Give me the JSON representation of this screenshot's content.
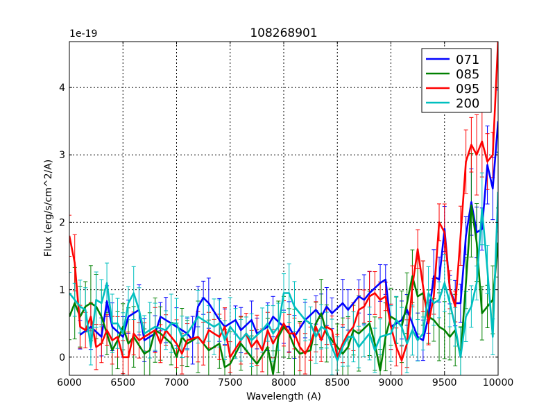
{
  "chart_data": {
    "type": "line",
    "title": "108268901",
    "xlabel": "Wavelength (A)",
    "ylabel": "Flux (erg/s/cm^2/A)",
    "y_offset_label": "1e-19",
    "xlim": [
      6000,
      10000
    ],
    "ylim": [
      -0.27,
      4.68
    ],
    "xticks": [
      6000,
      6500,
      7000,
      7500,
      8000,
      8500,
      9000,
      9500,
      10000
    ],
    "yticks": [
      0,
      1,
      2,
      3,
      4
    ],
    "grid": true,
    "legend_position": "top-right",
    "series": [
      {
        "name": "071",
        "color": "#0000ff",
        "yerr": 0.3,
        "x": [
          6100,
          6200,
          6300,
          6350,
          6400,
          6500,
          6550,
          6650,
          6700,
          6800,
          6850,
          6900,
          7000,
          7100,
          7150,
          7200,
          7250,
          7300,
          7400,
          7450,
          7550,
          7600,
          7700,
          7750,
          7850,
          7900,
          8000,
          8050,
          8100,
          8200,
          8300,
          8350,
          8400,
          8450,
          8550,
          8600,
          8700,
          8750,
          8800,
          8900,
          8950,
          9000,
          9100,
          9150,
          9250,
          9300,
          9350,
          9400,
          9450,
          9500,
          9550,
          9600,
          9650,
          9700,
          9750,
          9800,
          9850,
          9900,
          9950,
          10000
        ],
        "y": [
          0.33,
          0.45,
          0.3,
          0.83,
          0.45,
          0.3,
          0.6,
          0.7,
          0.25,
          0.35,
          0.6,
          0.55,
          0.45,
          0.35,
          0.25,
          0.75,
          0.88,
          0.8,
          0.55,
          0.45,
          0.55,
          0.4,
          0.55,
          0.35,
          0.45,
          0.6,
          0.45,
          0.45,
          0.3,
          0.55,
          0.7,
          0.6,
          0.75,
          0.65,
          0.8,
          0.7,
          0.9,
          0.85,
          0.95,
          1.1,
          1.15,
          0.45,
          0.55,
          0.7,
          0.3,
          0.25,
          0.6,
          1.2,
          1.15,
          1.9,
          1.0,
          0.8,
          0.8,
          1.8,
          2.3,
          1.85,
          1.9,
          2.85,
          2.5,
          3.5
        ]
      },
      {
        "name": "085",
        "color": "#008000",
        "yerr": 0.45,
        "x": [
          6000,
          6050,
          6100,
          6150,
          6200,
          6250,
          6300,
          6350,
          6400,
          6450,
          6500,
          6550,
          6600,
          6700,
          6750,
          6800,
          6850,
          6950,
          7000,
          7050,
          7100,
          7200,
          7300,
          7400,
          7450,
          7500,
          7600,
          7700,
          7750,
          7850,
          7900,
          7950,
          8000,
          8050,
          8100,
          8150,
          8250,
          8300,
          8350,
          8400,
          8500,
          8550,
          8600,
          8650,
          8700,
          8800,
          8850,
          8900,
          8950,
          9000,
          9050,
          9100,
          9150,
          9200,
          9250,
          9300,
          9350,
          9400,
          9450,
          9500,
          9550,
          9600,
          9650,
          9700,
          9750,
          9800,
          9850,
          9900,
          9950,
          10000
        ],
        "y": [
          0.6,
          0.8,
          0.6,
          0.75,
          0.8,
          0.75,
          0.6,
          0.35,
          0.1,
          0.25,
          0.45,
          0.2,
          0.3,
          0.05,
          0.1,
          0.4,
          0.35,
          0.2,
          0.0,
          0.3,
          0.2,
          0.3,
          0.1,
          0.2,
          -0.15,
          -0.1,
          0.2,
          0.0,
          -0.1,
          0.15,
          -0.25,
          0.3,
          0.45,
          0.35,
          0.15,
          0.05,
          0.1,
          0.5,
          0.65,
          0.35,
          0.15,
          0.05,
          0.15,
          0.4,
          0.35,
          0.5,
          0.2,
          -0.2,
          0.3,
          0.6,
          0.55,
          0.45,
          0.8,
          1.2,
          0.9,
          0.95,
          0.6,
          0.55,
          0.45,
          0.4,
          0.3,
          0.4,
          0.0,
          1.1,
          2.25,
          1.7,
          0.65,
          0.75,
          0.85,
          1.7
        ]
      },
      {
        "name": "095",
        "color": "#ff0000",
        "yerr": 0.3,
        "x": [
          6000,
          6050,
          6100,
          6150,
          6200,
          6250,
          6300,
          6350,
          6400,
          6450,
          6500,
          6550,
          6600,
          6650,
          6700,
          6800,
          6850,
          6900,
          7000,
          7050,
          7100,
          7200,
          7250,
          7300,
          7350,
          7400,
          7450,
          7500,
          7600,
          7650,
          7700,
          7750,
          7800,
          7850,
          7900,
          8000,
          8050,
          8100,
          8150,
          8200,
          8250,
          8300,
          8350,
          8400,
          8450,
          8500,
          8550,
          8600,
          8650,
          8700,
          8750,
          8800,
          8850,
          8900,
          8950,
          9000,
          9050,
          9100,
          9150,
          9200,
          9250,
          9300,
          9350,
          9400,
          9450,
          9500,
          9550,
          9600,
          9650,
          9700,
          9750,
          9800,
          9850,
          9900,
          9950,
          10000
        ],
        "y": [
          1.8,
          1.4,
          0.45,
          0.4,
          0.6,
          0.15,
          0.2,
          0.4,
          0.25,
          0.3,
          0.0,
          0.0,
          0.35,
          0.25,
          0.3,
          0.4,
          0.2,
          0.4,
          0.2,
          0.05,
          0.25,
          0.3,
          0.2,
          0.4,
          0.35,
          0.3,
          0.45,
          0.0,
          0.25,
          0.35,
          0.15,
          0.25,
          0.1,
          0.4,
          0.2,
          0.5,
          0.35,
          0.35,
          0.15,
          0.05,
          0.2,
          0.45,
          0.25,
          0.45,
          0.4,
          0.0,
          0.2,
          0.35,
          0.45,
          0.7,
          0.75,
          0.9,
          0.95,
          0.85,
          0.9,
          0.45,
          0.15,
          -0.05,
          0.2,
          1.05,
          1.6,
          1.05,
          0.5,
          0.9,
          2.0,
          1.85,
          1.0,
          0.75,
          1.8,
          2.9,
          3.15,
          3.0,
          3.2,
          2.9,
          3.0,
          4.7
        ]
      },
      {
        "name": "200",
        "color": "#00bfbf",
        "yerr": 0.35,
        "x": [
          6000,
          6050,
          6100,
          6150,
          6200,
          6250,
          6300,
          6350,
          6400,
          6450,
          6500,
          6550,
          6600,
          6650,
          6700,
          6750,
          6800,
          6900,
          6950,
          7000,
          7050,
          7100,
          7200,
          7250,
          7300,
          7350,
          7400,
          7450,
          7500,
          7550,
          7600,
          7650,
          7700,
          7800,
          7850,
          7900,
          7950,
          8000,
          8050,
          8100,
          8200,
          8250,
          8300,
          8350,
          8400,
          8450,
          8500,
          8550,
          8600,
          8650,
          8700,
          8750,
          8800,
          8850,
          8900,
          9000,
          9050,
          9100,
          9150,
          9200,
          9250,
          9300,
          9350,
          9400,
          9450,
          9500,
          9550,
          9600,
          9650,
          9700,
          9750,
          9800,
          9850,
          9900,
          9950,
          10000
        ],
        "y": [
          0.95,
          0.85,
          0.75,
          0.7,
          0.15,
          0.85,
          0.8,
          1.1,
          0.5,
          0.5,
          0.35,
          0.8,
          0.95,
          0.7,
          0.35,
          0.4,
          0.45,
          0.4,
          0.5,
          0.5,
          0.3,
          0.35,
          0.6,
          0.55,
          0.5,
          0.45,
          0.5,
          0.25,
          0.45,
          0.35,
          0.25,
          0.35,
          0.25,
          0.4,
          0.5,
          0.35,
          0.45,
          0.95,
          0.95,
          0.75,
          0.55,
          0.5,
          0.3,
          0.45,
          0.4,
          0.15,
          -0.05,
          0.15,
          0.3,
          0.3,
          0.15,
          0.25,
          0.35,
          0.1,
          0.3,
          0.35,
          0.55,
          0.45,
          0.2,
          0.4,
          0.25,
          0.35,
          0.95,
          0.8,
          0.85,
          1.1,
          0.8,
          0.45,
          0.0,
          0.6,
          0.75,
          1.1,
          2.2,
          1.3,
          0.3,
          2.45
        ]
      }
    ]
  }
}
